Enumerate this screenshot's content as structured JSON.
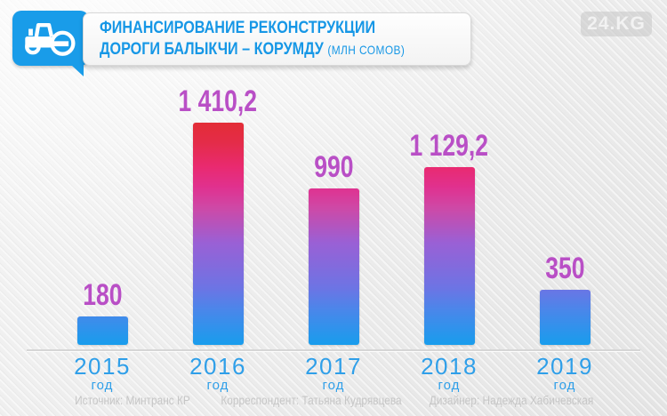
{
  "header": {
    "title_line1": "ФИНАНСИРОВАНИЕ РЕКОНСТРУКЦИИ",
    "title_line2": "ДОРОГИ БАЛЫКЧИ – КОРУМДУ ",
    "title_unit": "(млн сомов)",
    "logo": "24.KG",
    "accent_color": "#199ce9"
  },
  "chart_data": {
    "type": "bar",
    "title": "Финансирование реконструкции дороги Балыкчи – Корумду (млн сомов)",
    "categories": [
      "2015",
      "2016",
      "2017",
      "2018",
      "2019"
    ],
    "category_suffix": "год",
    "values": [
      180,
      1410.2,
      990,
      1129.2,
      350
    ],
    "values_display": [
      "180",
      "1 410,2",
      "990",
      "1 129,2",
      "350"
    ],
    "ylim": [
      0,
      1410.2
    ],
    "unit": "млн сомов",
    "grid": false,
    "legend": false,
    "value_label_color": "#b94fc6",
    "year_label_color": "#2f9fe9",
    "bar_gradient_bottom_to_top": [
      "#189ded",
      "#6d74e4",
      "#9a60d5",
      "#e0318f",
      "#e92a70",
      "#e32d36"
    ]
  },
  "footer": {
    "source": "Источник: Минтранс КР",
    "correspondent": "Корреспондент: Татьяна Кудрявцева",
    "designer": "Дизайнер: Надежда Хабичевская"
  }
}
